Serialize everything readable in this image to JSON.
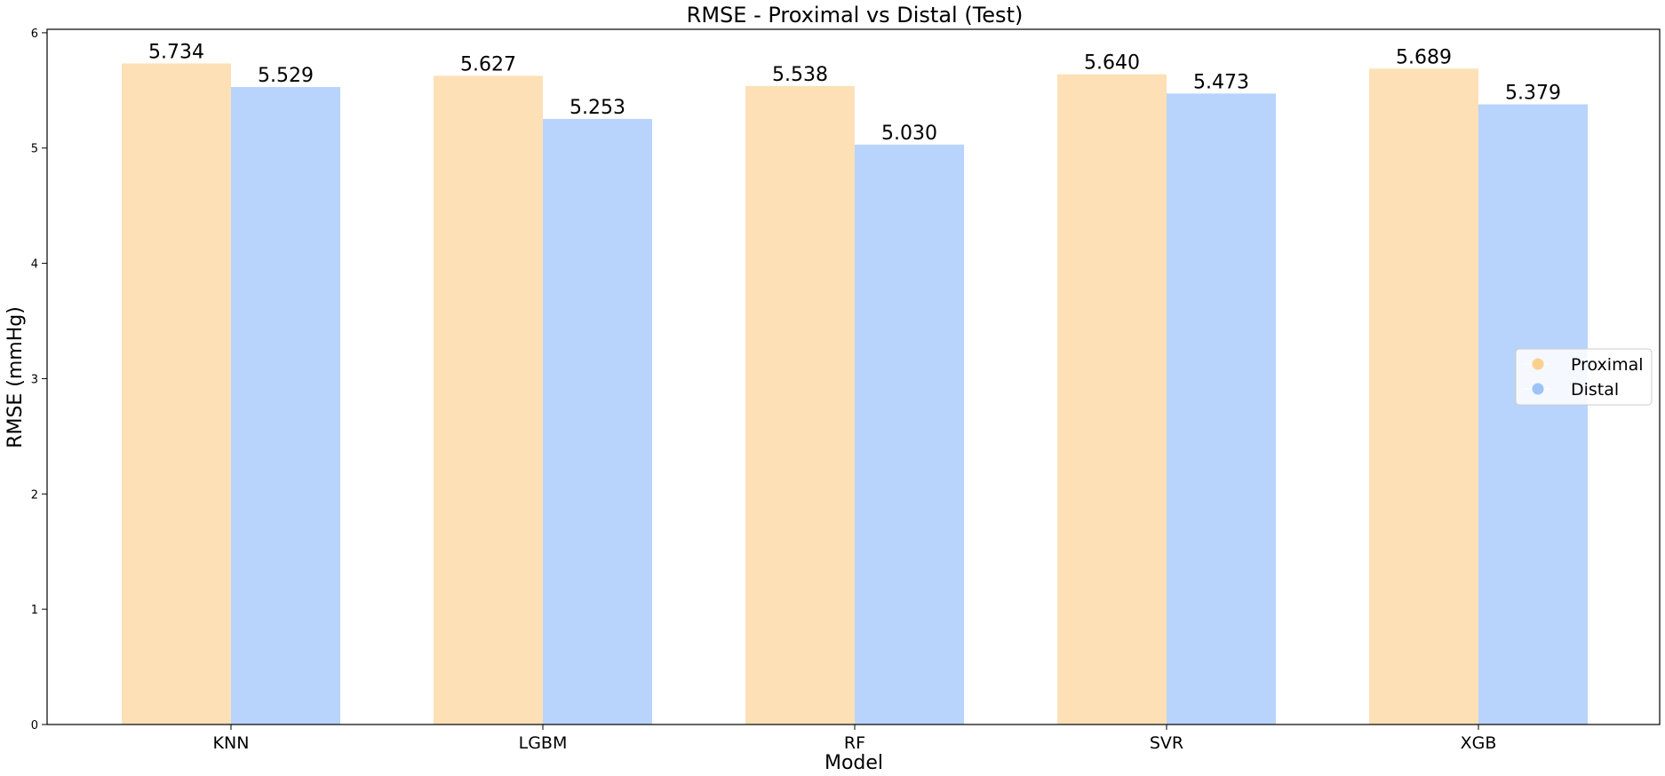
{
  "chart_data": {
    "type": "bar",
    "title": "RMSE - Proximal vs Distal (Test)",
    "xlabel": "Model",
    "ylabel": "RMSE (mmHg)",
    "categories": [
      "KNN",
      "LGBM",
      "RF",
      "SVR",
      "XGB"
    ],
    "series": [
      {
        "name": "Proximal",
        "color": "#fde0b6",
        "marker_color": "#fbd08f",
        "values": [
          5.734,
          5.627,
          5.538,
          5.64,
          5.689
        ],
        "labels": [
          "5.734",
          "5.627",
          "5.538",
          "5.640",
          "5.689"
        ]
      },
      {
        "name": "Distal",
        "color": "#b8d4fc",
        "marker_color": "#9ec3f7",
        "values": [
          5.529,
          5.253,
          5.03,
          5.473,
          5.379
        ],
        "labels": [
          "5.529",
          "5.253",
          "5.030",
          "5.473",
          "5.379"
        ]
      }
    ],
    "ylim": [
      0,
      6.03
    ],
    "yticks": [
      "0",
      "1",
      "2",
      "3",
      "4",
      "5",
      "6"
    ],
    "grid": false,
    "legend_position": "center-right"
  }
}
